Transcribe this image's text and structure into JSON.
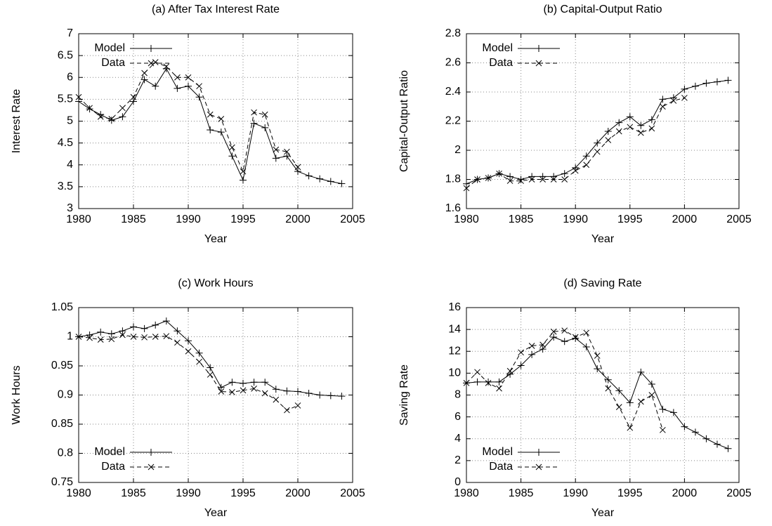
{
  "chart_data": [
    {
      "type": "line",
      "title": "(a) After Tax Interest Rate",
      "xlabel": "Year",
      "ylabel": "Interest Rate",
      "x": [
        1980,
        1981,
        1982,
        1983,
        1984,
        1985,
        1986,
        1987,
        1988,
        1989,
        1990,
        1991,
        1992,
        1993,
        1994,
        1995,
        1996,
        1997,
        1998,
        1999,
        2000,
        2001,
        2002,
        2003,
        2004
      ],
      "series": [
        {
          "name": "Model",
          "color": "#000000",
          "marker": "+",
          "dashed": false,
          "values": [
            5.45,
            5.28,
            5.15,
            5.02,
            5.1,
            5.45,
            5.95,
            5.8,
            6.2,
            5.75,
            5.8,
            5.55,
            4.8,
            4.75,
            4.2,
            3.65,
            4.95,
            4.85,
            4.15,
            4.2,
            3.85,
            3.75,
            3.68,
            3.62,
            3.57
          ]
        },
        {
          "name": "Data",
          "color": "#000000",
          "marker": "x",
          "dashed": true,
          "values": [
            5.55,
            5.3,
            5.1,
            5.05,
            5.3,
            5.55,
            6.1,
            6.35,
            6.25,
            6.0,
            6.0,
            5.8,
            5.15,
            5.05,
            4.4,
            3.85,
            5.2,
            5.15,
            4.35,
            4.3,
            3.95,
            null,
            null,
            null,
            null
          ]
        }
      ],
      "xlim": [
        1980,
        2005
      ],
      "ylim": [
        3,
        7
      ],
      "xticks": [
        1980,
        1985,
        1990,
        1995,
        2000,
        2005
      ],
      "yticks": [
        3,
        3.5,
        4,
        4.5,
        5,
        5.5,
        6,
        6.5,
        7
      ],
      "grid": true,
      "legend": "top-left"
    },
    {
      "type": "line",
      "title": "(b) Capital-Output Ratio",
      "xlabel": "Year",
      "ylabel": "Capital-Output Ratio",
      "x": [
        1980,
        1981,
        1982,
        1983,
        1984,
        1985,
        1986,
        1987,
        1988,
        1989,
        1990,
        1991,
        1992,
        1993,
        1994,
        1995,
        1996,
        1997,
        1998,
        1999,
        2000,
        2001,
        2002,
        2003,
        2004
      ],
      "series": [
        {
          "name": "Model",
          "color": "#000000",
          "marker": "+",
          "dashed": false,
          "values": [
            1.77,
            1.8,
            1.81,
            1.84,
            1.82,
            1.8,
            1.82,
            1.82,
            1.82,
            1.84,
            1.88,
            1.96,
            2.05,
            2.13,
            2.19,
            2.23,
            2.17,
            2.21,
            2.35,
            2.36,
            2.42,
            2.44,
            2.46,
            2.47,
            2.48
          ]
        },
        {
          "name": "Data",
          "color": "#000000",
          "marker": "x",
          "dashed": true,
          "values": [
            1.74,
            1.8,
            1.81,
            1.84,
            1.79,
            1.79,
            1.8,
            1.8,
            1.8,
            1.8,
            1.86,
            1.9,
            1.99,
            2.07,
            2.13,
            2.16,
            2.12,
            2.15,
            2.3,
            2.34,
            2.36,
            null,
            null,
            null,
            null
          ]
        }
      ],
      "xlim": [
        1980,
        2005
      ],
      "ylim": [
        1.6,
        2.8
      ],
      "xticks": [
        1980,
        1985,
        1990,
        1995,
        2000,
        2005
      ],
      "yticks": [
        1.6,
        1.8,
        2,
        2.2,
        2.4,
        2.6,
        2.8
      ],
      "grid": true,
      "legend": "top-left"
    },
    {
      "type": "line",
      "title": "(c) Work Hours",
      "xlabel": "Year",
      "ylabel": "Work Hours",
      "x": [
        1980,
        1981,
        1982,
        1983,
        1984,
        1985,
        1986,
        1987,
        1988,
        1989,
        1990,
        1991,
        1992,
        1993,
        1994,
        1995,
        1996,
        1997,
        1998,
        1999,
        2000,
        2001,
        2002,
        2003,
        2004
      ],
      "series": [
        {
          "name": "Model",
          "color": "#000000",
          "marker": "+",
          "dashed": false,
          "values": [
            1.0,
            1.003,
            1.008,
            1.005,
            1.01,
            1.017,
            1.014,
            1.02,
            1.027,
            1.01,
            0.993,
            0.972,
            0.947,
            0.913,
            0.922,
            0.92,
            0.922,
            0.922,
            0.91,
            0.907,
            0.906,
            0.903,
            0.9,
            0.899,
            0.898
          ]
        },
        {
          "name": "Data",
          "color": "#000000",
          "marker": "x",
          "dashed": true,
          "values": [
            1.0,
            0.998,
            0.995,
            0.996,
            1.003,
            1.0,
            0.999,
            1.0,
            1.001,
            0.99,
            0.975,
            0.957,
            0.935,
            0.906,
            0.905,
            0.908,
            0.911,
            0.903,
            0.892,
            0.874,
            0.882,
            null,
            null,
            null,
            null
          ]
        }
      ],
      "xlim": [
        1980,
        2005
      ],
      "ylim": [
        0.75,
        1.05
      ],
      "xticks": [
        1980,
        1985,
        1990,
        1995,
        2000,
        2005
      ],
      "yticks": [
        0.75,
        0.8,
        0.85,
        0.9,
        0.95,
        1,
        1.05
      ],
      "grid": true,
      "legend": "bottom-left"
    },
    {
      "type": "line",
      "title": "(d) Saving Rate",
      "xlabel": "Year",
      "ylabel": "Saving Rate",
      "x": [
        1980,
        1981,
        1982,
        1983,
        1984,
        1985,
        1986,
        1987,
        1988,
        1989,
        1990,
        1991,
        1992,
        1993,
        1994,
        1995,
        1996,
        1997,
        1998,
        1999,
        2000,
        2001,
        2002,
        2003,
        2004
      ],
      "series": [
        {
          "name": "Model",
          "color": "#000000",
          "marker": "+",
          "dashed": false,
          "values": [
            9.1,
            9.2,
            9.2,
            9.2,
            9.9,
            10.7,
            11.7,
            12.2,
            13.3,
            12.9,
            13.2,
            12.4,
            10.4,
            9.4,
            8.4,
            7.3,
            10.1,
            9.0,
            6.7,
            6.4,
            5.1,
            4.6,
            4.0,
            3.5,
            3.1
          ]
        },
        {
          "name": "Data",
          "color": "#000000",
          "marker": "x",
          "dashed": true,
          "values": [
            9.1,
            10.1,
            9.1,
            8.6,
            10.2,
            11.9,
            12.5,
            12.6,
            13.8,
            13.9,
            13.3,
            13.7,
            11.6,
            8.6,
            6.9,
            5.0,
            7.4,
            8.0,
            4.8,
            null,
            null,
            null,
            null,
            null,
            null
          ]
        }
      ],
      "xlim": [
        1980,
        2005
      ],
      "ylim": [
        0,
        16
      ],
      "xticks": [
        1980,
        1985,
        1990,
        1995,
        2000,
        2005
      ],
      "yticks": [
        0,
        2,
        4,
        6,
        8,
        10,
        12,
        14,
        16
      ],
      "grid": true,
      "legend": "bottom-left"
    }
  ]
}
